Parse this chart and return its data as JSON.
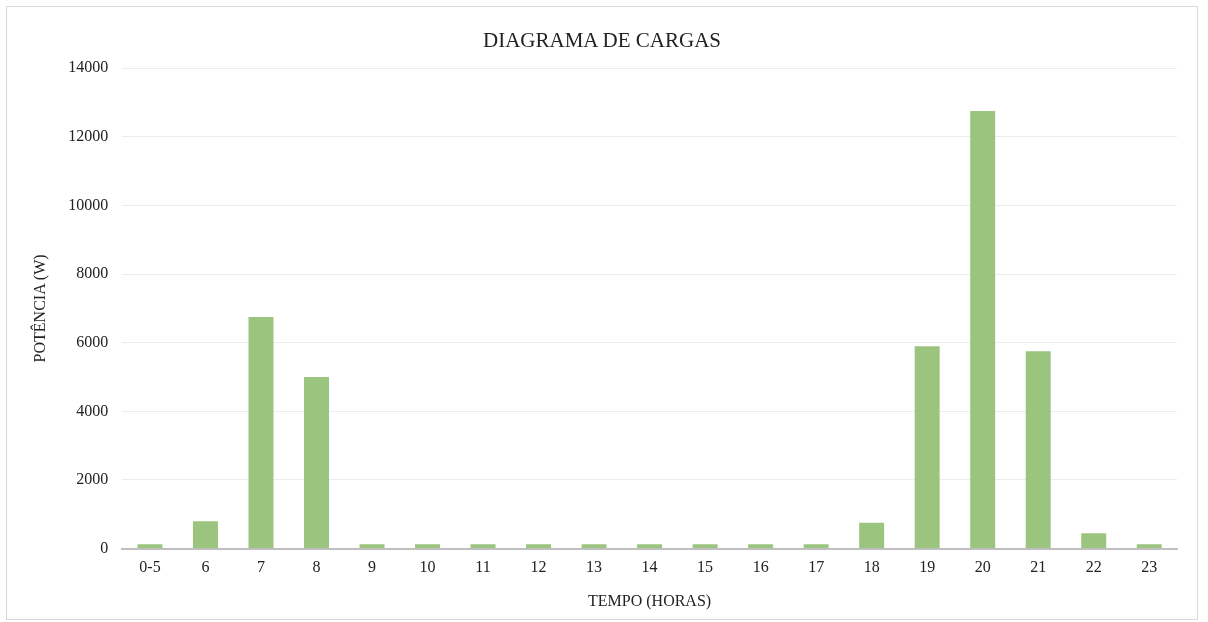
{
  "chart_data": {
    "type": "bar",
    "title": "DIAGRAMA DE CARGAS",
    "xlabel": "TEMPO (HORAS)",
    "ylabel": "POTÊNCIA (W)",
    "categories": [
      "0-5",
      "6",
      "7",
      "8",
      "9",
      "10",
      "11",
      "12",
      "13",
      "14",
      "15",
      "16",
      "17",
      "18",
      "19",
      "20",
      "21",
      "22",
      "23"
    ],
    "values": [
      130,
      800,
      6750,
      5000,
      130,
      130,
      130,
      130,
      130,
      130,
      130,
      130,
      130,
      750,
      5900,
      12750,
      5750,
      450,
      130
    ],
    "color": "#9bc47e",
    "ylim": [
      0,
      14000
    ],
    "yticks": [
      0,
      2000,
      4000,
      6000,
      8000,
      10000,
      12000,
      14000
    ],
    "grid": "y"
  }
}
